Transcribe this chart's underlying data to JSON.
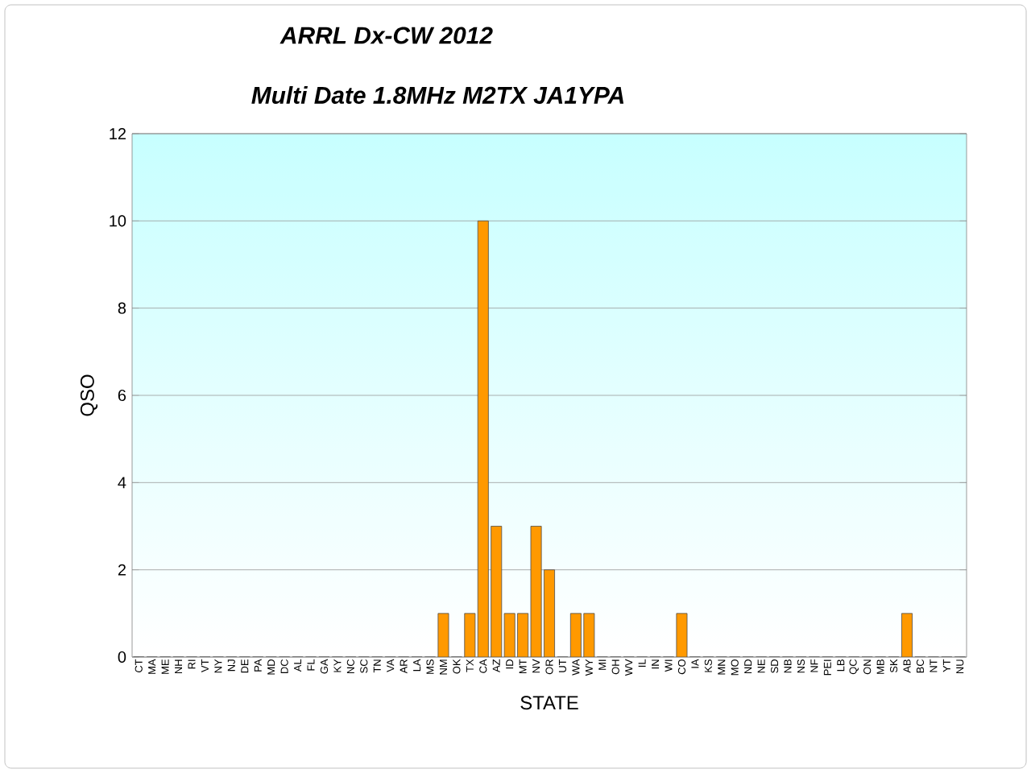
{
  "chart_data": {
    "type": "bar",
    "title": "ARRL Dx-CW 2012",
    "subtitle": "Multi Date 1.8MHz M2TX JA1YPA",
    "xlabel": "STATE",
    "ylabel": "QSO",
    "categories": [
      "CT",
      "MA",
      "ME",
      "NH",
      "RI",
      "VT",
      "NY",
      "NJ",
      "DE",
      "PA",
      "MD",
      "DC",
      "AL",
      "FL",
      "GA",
      "KY",
      "NC",
      "SC",
      "TN",
      "VA",
      "AR",
      "LA",
      "MS",
      "NM",
      "OK",
      "TX",
      "CA",
      "AZ",
      "ID",
      "MT",
      "NV",
      "OR",
      "UT",
      "WA",
      "WY",
      "MI",
      "OH",
      "WV",
      "IL",
      "IN",
      "WI",
      "CO",
      "IA",
      "KS",
      "MN",
      "MO",
      "ND",
      "NE",
      "SD",
      "NB",
      "NS",
      "NF",
      "PEI",
      "LB",
      "QC",
      "ON",
      "MB",
      "SK",
      "AB",
      "BC",
      "NT",
      "YT",
      "NU"
    ],
    "values": [
      0,
      0,
      0,
      0,
      0,
      0,
      0,
      0,
      0,
      0,
      0,
      0,
      0,
      0,
      0,
      0,
      0,
      0,
      0,
      0,
      0,
      0,
      0,
      1,
      0,
      1,
      10,
      3,
      1,
      1,
      3,
      2,
      0,
      1,
      1,
      0,
      0,
      0,
      0,
      0,
      0,
      1,
      0,
      0,
      0,
      0,
      0,
      0,
      0,
      0,
      0,
      0,
      0,
      0,
      0,
      0,
      0,
      0,
      1,
      0,
      0,
      0,
      0
    ],
    "color": "#ff9900",
    "ylim": [
      0,
      12
    ],
    "yticks": [
      0,
      2,
      4,
      6,
      8,
      10,
      12
    ],
    "grid": "y"
  }
}
